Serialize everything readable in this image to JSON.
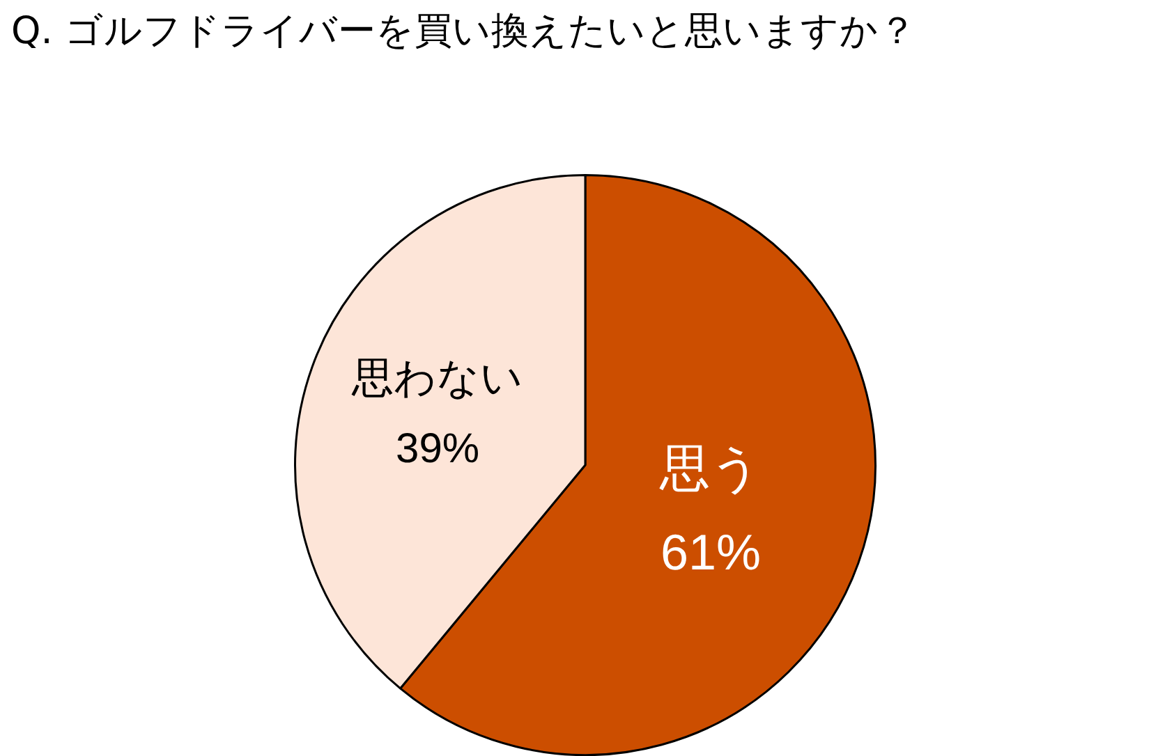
{
  "chart_data": {
    "type": "pie",
    "title": "Q. ゴルフドライバーを買い換えたいと思いますか？",
    "categories": [
      "思う",
      "思わない"
    ],
    "values": [
      61,
      39
    ],
    "colors": [
      "#cc4e00",
      "#fde5d8"
    ],
    "value_labels": [
      "61%",
      "39%"
    ],
    "legend": false
  }
}
